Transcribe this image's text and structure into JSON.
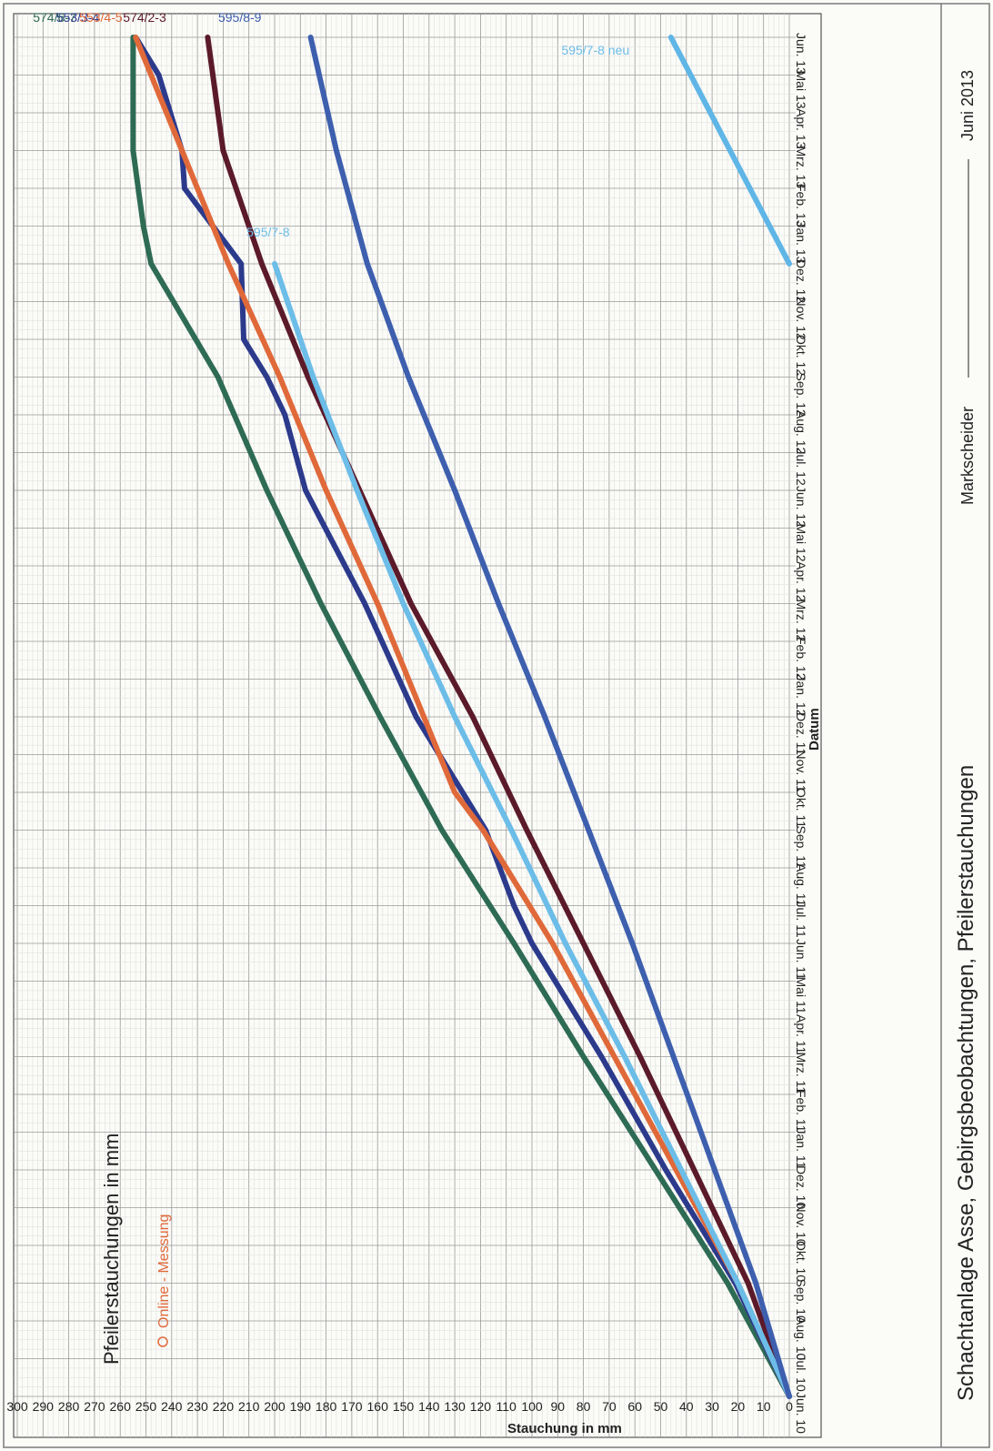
{
  "chart_data": {
    "type": "line",
    "title": "Pfeilerstauchungen in mm",
    "annotation": "Online - Messung",
    "xlabel": "Datum",
    "ylabel": "Stauchung in mm",
    "ylim": [
      0,
      300
    ],
    "y_ticks": [
      0,
      10,
      20,
      30,
      40,
      50,
      60,
      70,
      80,
      90,
      100,
      110,
      120,
      130,
      140,
      150,
      160,
      170,
      180,
      190,
      200,
      210,
      220,
      230,
      240,
      250,
      260,
      270,
      280,
      290,
      300
    ],
    "x_ticks": [
      "Jun. 10",
      "Jul. 10",
      "Aug. 10",
      "Sep. 10",
      "Okt. 10",
      "Nov. 10",
      "Dez. 10",
      "Jan. 11",
      "Feb. 11",
      "Mrz. 11",
      "Apr. 11",
      "Mai 11",
      "Jun. 11",
      "Jul. 11",
      "Aug. 11",
      "Sep. 11",
      "Okt. 11",
      "Nov. 11",
      "Dez. 11",
      "Jan. 12",
      "Feb. 12",
      "Mrz. 12",
      "Apr. 12",
      "Mai 12",
      "Jun. 12",
      "Jul. 12",
      "Aug. 12",
      "Sep. 12",
      "Okt. 12",
      "Nov. 12",
      "Dez. 12",
      "Jan. 13",
      "Feb. 13",
      "Mrz. 13",
      "Apr. 13",
      "Mai 13",
      "Jun. 13"
    ],
    "grid": true,
    "series": [
      {
        "name": "574/6-7",
        "color": "#2e6b55",
        "points": [
          [
            "Jun. 10",
            0
          ],
          [
            "Sep. 10",
            24
          ],
          [
            "Dez. 10",
            52
          ],
          [
            "Mrz. 11",
            80
          ],
          [
            "Jun. 11",
            107
          ],
          [
            "Sep. 11",
            135
          ],
          [
            "Dez. 11",
            159
          ],
          [
            "Mrz. 12",
            182
          ],
          [
            "Jun. 12",
            203
          ],
          [
            "Sep. 12",
            222
          ],
          [
            "Dez. 12",
            248
          ],
          [
            "Jan. 13",
            251
          ],
          [
            "Feb. 13",
            253
          ],
          [
            "Mrz. 13",
            255
          ],
          [
            "Jun. 13",
            255
          ]
        ]
      },
      {
        "name": "553/3-4",
        "color": "#2c3a8c",
        "points": [
          [
            "Jun. 10",
            0
          ],
          [
            "Sep. 10",
            21
          ],
          [
            "Dez. 10",
            48
          ],
          [
            "Mrz. 11",
            73
          ],
          [
            "Jun. 11",
            100
          ],
          [
            "Jul. 11",
            107
          ],
          [
            "Sep. 11",
            118
          ],
          [
            "Dez. 11",
            145
          ],
          [
            "Mrz. 12",
            165
          ],
          [
            "Jun. 12",
            188
          ],
          [
            "Jul. 12",
            192
          ],
          [
            "Aug. 12",
            196
          ],
          [
            "Sep. 12",
            203
          ],
          [
            "Okt. 12",
            212
          ],
          [
            "Dez. 12",
            213
          ],
          [
            "Feb. 13",
            235
          ],
          [
            "Mrz. 13",
            236
          ],
          [
            "Mai 13",
            245
          ],
          [
            "Jun. 13",
            254
          ]
        ]
      },
      {
        "name": "553/4-5",
        "color": "#e0693a",
        "points": [
          [
            "Jun. 10",
            0
          ],
          [
            "Sep. 10",
            20
          ],
          [
            "Dez. 10",
            44
          ],
          [
            "Mrz. 11",
            68
          ],
          [
            "Jun. 11",
            92
          ],
          [
            "Aug. 11",
            110
          ],
          [
            "Sep. 11",
            119
          ],
          [
            "Okt. 11",
            130
          ],
          [
            "Dez. 11",
            142
          ],
          [
            "Mrz. 12",
            160
          ],
          [
            "Jun. 12",
            180
          ],
          [
            "Sep. 12",
            198
          ],
          [
            "Dez. 12",
            218
          ],
          [
            "Mrz. 13",
            236
          ],
          [
            "Jun. 13",
            254
          ]
        ]
      },
      {
        "name": "574/2-3",
        "color": "#5b1a2a",
        "points": [
          [
            "Jun. 10",
            0
          ],
          [
            "Sep. 10",
            16
          ],
          [
            "Dez. 10",
            37
          ],
          [
            "Mrz. 11",
            58
          ],
          [
            "Jun. 11",
            80
          ],
          [
            "Sep. 11",
            102
          ],
          [
            "Dez. 11",
            123
          ],
          [
            "Mrz. 12",
            147
          ],
          [
            "Jun. 12",
            167
          ],
          [
            "Sep. 12",
            187
          ],
          [
            "Dez. 12",
            205
          ],
          [
            "Mrz. 13",
            220
          ],
          [
            "Jun. 13",
            226
          ]
        ]
      },
      {
        "name": "595/7-8",
        "color": "#6cbde8",
        "points": [
          [
            "Jun. 10",
            0
          ],
          [
            "Sep. 10",
            20
          ],
          [
            "Dez. 10",
            42
          ],
          [
            "Mrz. 11",
            64
          ],
          [
            "Jun. 11",
            87
          ],
          [
            "Sep. 11",
            108
          ],
          [
            "Dez. 11",
            130
          ],
          [
            "Mrz. 12",
            150
          ],
          [
            "Jun. 12",
            168
          ],
          [
            "Sep. 12",
            185
          ],
          [
            "Dez. 12",
            200
          ]
        ]
      },
      {
        "name": "595/8-9",
        "color": "#3d5fae",
        "points": [
          [
            "Jun. 10",
            0
          ],
          [
            "Sep. 10",
            13
          ],
          [
            "Dez. 10",
            29
          ],
          [
            "Mrz. 11",
            45
          ],
          [
            "Jun. 11",
            61
          ],
          [
            "Sep. 11",
            78
          ],
          [
            "Dez. 11",
            95
          ],
          [
            "Mrz. 12",
            113
          ],
          [
            "Jun. 12",
            130
          ],
          [
            "Sep. 12",
            148
          ],
          [
            "Dez. 12",
            164
          ],
          [
            "Mrz. 13",
            176
          ],
          [
            "Jun. 13",
            186
          ]
        ]
      },
      {
        "name": "595/7-8 neu",
        "color": "#5fb6e6",
        "points": [
          [
            "Dez. 12",
            0
          ],
          [
            "Jun. 13",
            46
          ]
        ]
      }
    ],
    "series_labels": [
      {
        "text": "574/6-7",
        "color": "#2e6b55"
      },
      {
        "text": "553/3-4",
        "color": "#2c3a8c"
      },
      {
        "text": "553/4-5",
        "color": "#e0693a"
      },
      {
        "text": "574/2-3",
        "color": "#5b1a2a"
      },
      {
        "text": "595/8-9",
        "color": "#3d5fae"
      },
      {
        "text": "595/7-8",
        "color": "#6cbde8"
      },
      {
        "text": "595/7-8 neu",
        "color": "#6cbde8"
      }
    ]
  },
  "footer": {
    "caption": "Schachtanlage Asse, Gebirgsbeobachtungen, Pfeilerstauchungen",
    "role": "Markscheider",
    "date": "Juni 2013"
  }
}
